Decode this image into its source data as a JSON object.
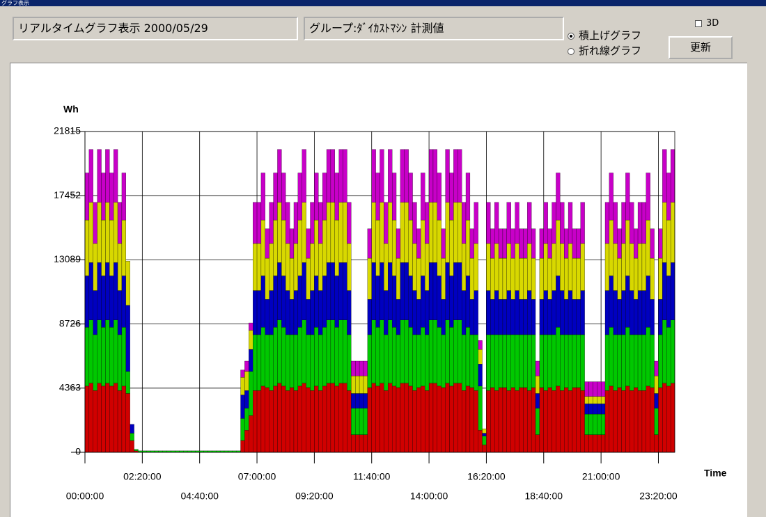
{
  "ui": {
    "window_title": "グラフ表示",
    "date_box": "リアルタイムグラフ表示 2000/05/29",
    "group_box": "グループ:ﾀﾞｲｶｽﾄﾏｼﾝ 計測値",
    "radio_options": [
      "積上げグラフ",
      "折れ線グラフ"
    ],
    "checkbox": "3D",
    "button": "更新"
  },
  "chart_data": {
    "type": "bar",
    "stacked": true,
    "y_label": "Wh",
    "x_label": "Time",
    "x": [
      0,
      10,
      20,
      30,
      40,
      50,
      60,
      70,
      80,
      90,
      100,
      110,
      120,
      130,
      140,
      150,
      160,
      170,
      180,
      190,
      200,
      210,
      220,
      230,
      240,
      250,
      260,
      270,
      280,
      290,
      300,
      310,
      320,
      330,
      340,
      350,
      360,
      370,
      380,
      390,
      400,
      410,
      420,
      430,
      440,
      450,
      460,
      470,
      480,
      490,
      500,
      510,
      520,
      530,
      540,
      550,
      560,
      570,
      580,
      590,
      600,
      610,
      620,
      630,
      640,
      650,
      660,
      670,
      680,
      690,
      700,
      710,
      720,
      730,
      740,
      750,
      760,
      770,
      780,
      790,
      800,
      810,
      820,
      830,
      840,
      850,
      860,
      870,
      880,
      890,
      900,
      910,
      920,
      930,
      940,
      950,
      960,
      970,
      980,
      990,
      1000,
      1010,
      1020,
      1030,
      1040,
      1050,
      1060,
      1070,
      1080,
      1090,
      1100,
      1110,
      1120,
      1130,
      1140,
      1150,
      1160,
      1170,
      1180,
      1190,
      1200,
      1210,
      1220,
      1230,
      1240,
      1250,
      1260,
      1270,
      1280,
      1290,
      1300,
      1310,
      1320,
      1330,
      1340,
      1350,
      1360,
      1370,
      1380,
      1390,
      1400,
      1410,
      1420,
      1430
    ],
    "xlim": [
      0,
      1440
    ],
    "xticks": [
      {
        "value": 0,
        "label": "00:00:00"
      },
      {
        "value": 140,
        "label": "02:20:00"
      },
      {
        "value": 280,
        "label": "04:40:00"
      },
      {
        "value": 420,
        "label": "07:00:00"
      },
      {
        "value": 560,
        "label": "09:20:00"
      },
      {
        "value": 700,
        "label": "11:40:00"
      },
      {
        "value": 840,
        "label": "14:00:00"
      },
      {
        "value": 980,
        "label": "16:20:00"
      },
      {
        "value": 1120,
        "label": "18:40:00"
      },
      {
        "value": 1260,
        "label": "21:00:00"
      },
      {
        "value": 1400,
        "label": "23:20:00"
      }
    ],
    "ylim": [
      0,
      21815
    ],
    "yticks": [
      0,
      4363,
      8726,
      13089,
      17452,
      21815
    ],
    "grid": true,
    "series": [
      {
        "color": "#d00000",
        "values": [
          4500,
          4700,
          4200,
          4700,
          4500,
          4700,
          4500,
          4700,
          4200,
          4500,
          4000,
          800,
          100,
          0,
          0,
          0,
          0,
          0,
          0,
          0,
          0,
          0,
          0,
          0,
          0,
          0,
          0,
          0,
          0,
          0,
          0,
          0,
          0,
          0,
          0,
          0,
          0,
          0,
          800,
          1500,
          2500,
          4200,
          4200,
          4500,
          4400,
          4200,
          4500,
          4700,
          4500,
          4200,
          4400,
          4200,
          4500,
          4700,
          4400,
          4200,
          4500,
          4200,
          4500,
          4700,
          4700,
          4500,
          4700,
          4700,
          4200,
          1200,
          1200,
          1200,
          1200,
          4400,
          4700,
          4500,
          4700,
          4200,
          4700,
          4500,
          4400,
          4700,
          4700,
          4500,
          4200,
          4400,
          4500,
          4200,
          4700,
          4700,
          4500,
          4400,
          4700,
          4500,
          4700,
          4700,
          4200,
          4500,
          4400,
          4200,
          1500,
          500,
          4200,
          4400,
          4200,
          4400,
          4400,
          4200,
          4400,
          4200,
          4400,
          4400,
          4200,
          4400,
          1200,
          4400,
          4200,
          4400,
          4200,
          4500,
          4200,
          4400,
          4200,
          4400,
          4400,
          4200,
          1200,
          1200,
          1200,
          1200,
          1200,
          4200,
          4500,
          4200,
          4400,
          4200,
          4500,
          4200,
          4400,
          4200,
          4200,
          4500,
          4400,
          1200,
          4400,
          4700,
          4500,
          4700
        ]
      },
      {
        "color": "#00c800",
        "values": [
          4000,
          4300,
          3800,
          4300,
          4000,
          4300,
          4000,
          4300,
          3800,
          4000,
          1500,
          500,
          100,
          100,
          100,
          100,
          100,
          100,
          100,
          100,
          100,
          100,
          100,
          100,
          100,
          100,
          100,
          100,
          100,
          100,
          100,
          100,
          100,
          100,
          100,
          100,
          100,
          100,
          1500,
          1500,
          3000,
          3800,
          3800,
          4000,
          3600,
          3800,
          4000,
          4300,
          4000,
          3800,
          3600,
          3800,
          4000,
          4300,
          3600,
          3800,
          4000,
          3800,
          4000,
          4300,
          4300,
          4000,
          4300,
          4300,
          3800,
          1800,
          1800,
          1800,
          1800,
          3600,
          4300,
          4000,
          4300,
          3800,
          4300,
          4000,
          3600,
          4300,
          4300,
          4000,
          3800,
          3600,
          4000,
          3800,
          4300,
          4300,
          4000,
          3600,
          4300,
          4000,
          4300,
          4300,
          3800,
          4000,
          3600,
          3800,
          3000,
          600,
          3800,
          3600,
          3800,
          3600,
          3600,
          3800,
          3600,
          3800,
          3600,
          3600,
          3800,
          3600,
          1800,
          3600,
          3800,
          3600,
          3800,
          4000,
          3800,
          3600,
          3800,
          3600,
          3600,
          3800,
          1400,
          1400,
          1400,
          1400,
          1400,
          3800,
          4000,
          3800,
          3600,
          3800,
          4000,
          3800,
          3600,
          3800,
          3800,
          4000,
          3600,
          1800,
          3600,
          4300,
          4000,
          4300
        ]
      },
      {
        "color": "#0000c0",
        "values": [
          3500,
          3900,
          3000,
          3900,
          3500,
          3900,
          3500,
          3900,
          3000,
          3500,
          4500,
          600,
          0,
          0,
          0,
          0,
          0,
          0,
          0,
          0,
          0,
          0,
          0,
          0,
          0,
          0,
          0,
          0,
          0,
          0,
          0,
          0,
          0,
          0,
          0,
          0,
          0,
          0,
          1600,
          1200,
          1500,
          3000,
          3000,
          3500,
          2400,
          3000,
          3500,
          3900,
          3500,
          3000,
          2400,
          3000,
          3500,
          3900,
          2400,
          3000,
          3500,
          3000,
          3500,
          3900,
          3900,
          3500,
          3900,
          3900,
          3000,
          1000,
          1000,
          1000,
          1000,
          2400,
          3900,
          3500,
          3900,
          3000,
          3900,
          3500,
          2400,
          3900,
          3900,
          3500,
          3000,
          2400,
          3500,
          3000,
          3900,
          3900,
          3500,
          2400,
          3900,
          3500,
          3900,
          3900,
          3000,
          3500,
          2400,
          3000,
          1500,
          200,
          3000,
          2400,
          3000,
          2400,
          2400,
          3000,
          2400,
          3000,
          2400,
          2400,
          3000,
          2400,
          1000,
          2400,
          3000,
          2400,
          3000,
          3500,
          3000,
          2400,
          3000,
          2400,
          2400,
          3000,
          700,
          700,
          700,
          700,
          700,
          3000,
          3500,
          3000,
          2400,
          3000,
          3500,
          3000,
          2400,
          3000,
          3000,
          3500,
          2400,
          1000,
          2400,
          3900,
          3500,
          3900
        ]
      },
      {
        "color": "#d8d800",
        "values": [
          3800,
          4100,
          3200,
          4100,
          3800,
          4100,
          3800,
          4100,
          3200,
          3800,
          3000,
          0,
          0,
          0,
          0,
          0,
          0,
          0,
          0,
          0,
          0,
          0,
          0,
          0,
          0,
          0,
          0,
          0,
          0,
          0,
          0,
          0,
          0,
          0,
          0,
          0,
          0,
          0,
          1200,
          1300,
          1300,
          3200,
          3200,
          3800,
          2800,
          3200,
          3800,
          4100,
          3800,
          3200,
          2800,
          3200,
          3800,
          4100,
          2800,
          3200,
          3800,
          3200,
          3800,
          4100,
          4100,
          3800,
          4100,
          4100,
          3200,
          1200,
          1200,
          1200,
          1200,
          2800,
          4100,
          3800,
          4100,
          3200,
          4100,
          3800,
          2800,
          4100,
          4100,
          3800,
          3200,
          2800,
          3800,
          3200,
          4100,
          4100,
          3800,
          2800,
          4100,
          3800,
          4100,
          4100,
          3200,
          3800,
          2800,
          3200,
          1000,
          300,
          3200,
          2800,
          3200,
          2800,
          2800,
          3200,
          2800,
          3200,
          2800,
          2800,
          3200,
          2800,
          1200,
          2800,
          3200,
          2800,
          3200,
          3800,
          3200,
          2800,
          3200,
          2800,
          2800,
          3200,
          500,
          500,
          500,
          500,
          500,
          3200,
          3800,
          3200,
          2800,
          3200,
          3800,
          3200,
          2800,
          3200,
          3200,
          3800,
          2800,
          1200,
          2800,
          4100,
          3800,
          4100
        ]
      },
      {
        "color": "#c800c8",
        "values": [
          3200,
          3600,
          2800,
          3600,
          3200,
          3600,
          3200,
          3600,
          2800,
          3200,
          0,
          0,
          0,
          0,
          0,
          0,
          0,
          0,
          0,
          0,
          0,
          0,
          0,
          0,
          0,
          0,
          0,
          0,
          0,
          0,
          0,
          0,
          0,
          0,
          0,
          0,
          0,
          0,
          500,
          700,
          500,
          2800,
          2800,
          3200,
          2000,
          2800,
          3200,
          3600,
          3200,
          2800,
          2000,
          2800,
          3200,
          3600,
          2000,
          2800,
          3200,
          2800,
          3200,
          3600,
          3600,
          3200,
          3600,
          3600,
          2800,
          1000,
          1000,
          1000,
          1000,
          2000,
          3600,
          3200,
          3600,
          2800,
          3600,
          3200,
          2000,
          3600,
          3600,
          3200,
          2800,
          2000,
          3200,
          2800,
          3600,
          3600,
          3200,
          2000,
          3600,
          3200,
          3600,
          3600,
          2800,
          3200,
          2000,
          2800,
          600,
          0,
          2800,
          2000,
          2800,
          2000,
          2000,
          2800,
          2000,
          2800,
          2000,
          2000,
          2800,
          2000,
          1000,
          2000,
          2800,
          2000,
          2800,
          3200,
          2800,
          2000,
          2800,
          2000,
          2000,
          2800,
          1000,
          1000,
          1000,
          1000,
          1000,
          2800,
          3200,
          2800,
          2000,
          2800,
          3200,
          2800,
          2000,
          2800,
          2800,
          3200,
          2000,
          1000,
          2000,
          3600,
          3200,
          3600
        ]
      }
    ]
  }
}
